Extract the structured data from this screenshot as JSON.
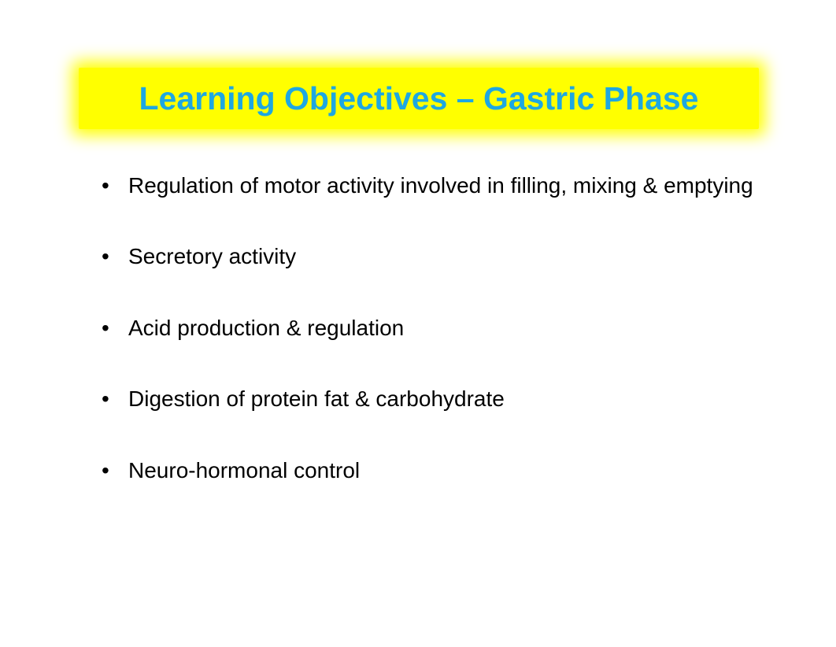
{
  "slide": {
    "title": "Learning Objectives – Gastric Phase",
    "title_color": "#1ea7e1",
    "title_fontsize": 41,
    "highlight_color": "#ffff00",
    "background_color": "#ffffff",
    "bullet_color": "#000000",
    "bullet_fontsize": 28,
    "bullet_gap": 54,
    "bullets": [
      "Regulation of motor activity involved in filling, mixing & emptying",
      "Secretory activity",
      "Acid production & regulation",
      "Digestion of protein fat & carbohydrate",
      "Neuro-hormonal control"
    ]
  }
}
